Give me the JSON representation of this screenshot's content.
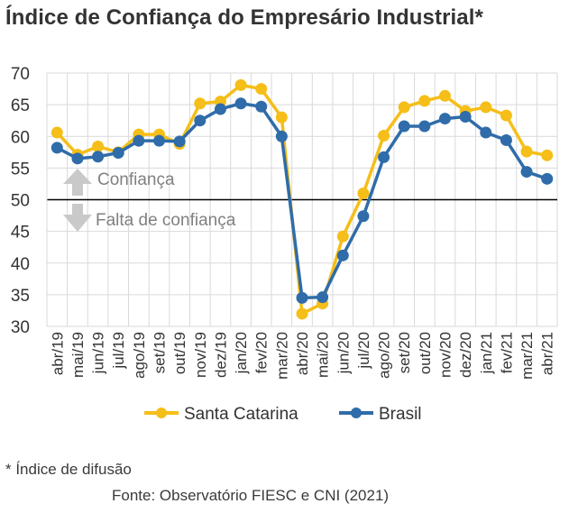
{
  "title": "Índice de Confiança do Empresário Industrial*",
  "footnote": "* Índice de difusão",
  "source": "Fonte: Observatório FIESC e CNI (2021)",
  "annotations": {
    "above": "Confiança",
    "below": "Falta de confiança"
  },
  "colors": {
    "santa_catarina": "#F5BE18",
    "brasil": "#2F6CA9",
    "grid": "#D9D9D9",
    "axis": "#000000",
    "arrow": "#C9C9C9",
    "text": "#333333"
  },
  "chart_data": {
    "type": "line",
    "ylim": [
      30,
      70
    ],
    "yticks": [
      30,
      35,
      40,
      45,
      50,
      55,
      60,
      65,
      70
    ],
    "reference_line": 50,
    "grid": true,
    "legend_position": "bottom",
    "categories": [
      "abr/19",
      "mai/19",
      "jun/19",
      "jul/19",
      "ago/19",
      "set/19",
      "out/19",
      "nov/19",
      "dez/19",
      "jan/20",
      "fev/20",
      "mar/20",
      "abr/20",
      "mai/20",
      "jun/20",
      "jul/20",
      "ago/20",
      "set/20",
      "out/20",
      "nov/20",
      "dez/20",
      "jan/21",
      "fev/21",
      "mar/21",
      "abr/21"
    ],
    "series": [
      {
        "name": "Santa Catarina",
        "values": [
          60.6,
          57.1,
          58.4,
          57.5,
          60.3,
          60.3,
          58.8,
          65.2,
          65.5,
          68.1,
          67.5,
          63.0,
          32.0,
          33.6,
          44.2,
          51.0,
          60.1,
          64.6,
          65.6,
          66.4,
          64.0,
          64.6,
          63.3,
          57.6,
          57.0
        ]
      },
      {
        "name": "Brasil",
        "values": [
          58.2,
          56.5,
          56.8,
          57.4,
          59.3,
          59.3,
          59.2,
          62.5,
          64.3,
          65.2,
          64.7,
          60.0,
          34.5,
          34.6,
          41.2,
          47.4,
          56.7,
          61.6,
          61.6,
          62.8,
          63.1,
          60.6,
          59.4,
          54.4,
          53.3
        ]
      }
    ]
  }
}
